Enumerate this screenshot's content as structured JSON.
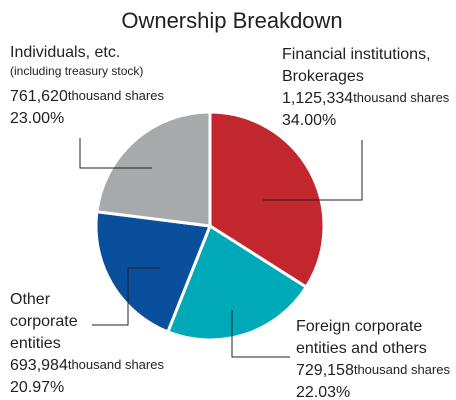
{
  "chart_data": {
    "type": "pie",
    "title": "Ownership Breakdown",
    "categories": [
      [
        "Financial institutions,",
        "Brokerages"
      ],
      [
        "Foreign corporate",
        "entities and others"
      ],
      [
        "Other",
        "corporate",
        "entities"
      ],
      [
        "Individuals, etc."
      ]
    ],
    "note": "(including treasury stock)",
    "values": [
      34.0,
      22.03,
      20.97,
      23.0
    ],
    "value_labels": [
      "34.00%",
      "22.03%",
      "20.97%",
      "23.00%"
    ],
    "shares": [
      1125334,
      729158,
      693984,
      761620
    ],
    "share_labels": [
      "1,125,334",
      "729,158",
      "693,984",
      "761,620"
    ],
    "shares_unit": "thousand shares",
    "colors": [
      "#c1272d",
      "#00a9b8",
      "#0a4f9c",
      "#a7a9ac"
    ]
  }
}
